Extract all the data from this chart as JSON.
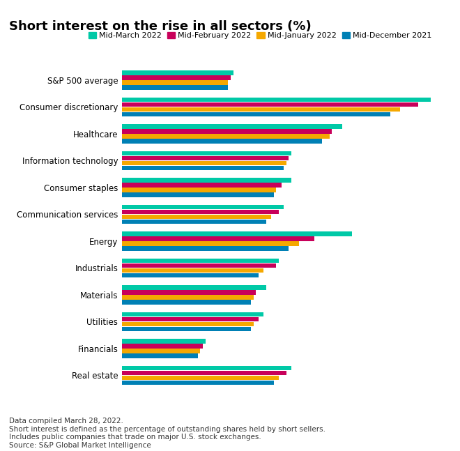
{
  "title": "Short interest on the rise in all sectors (%)",
  "categories": [
    "S&P 500 average",
    "Consumer discretionary",
    "Healthcare",
    "Information technology",
    "Consumer staples",
    "Communication services",
    "Energy",
    "Industrials",
    "Materials",
    "Utilities",
    "Financials",
    "Real estate"
  ],
  "series": {
    "Mid-March 2022": [
      2.2,
      6.1,
      4.35,
      3.35,
      3.35,
      3.2,
      4.55,
      3.1,
      2.85,
      2.8,
      1.65,
      3.35
    ],
    "Mid-February 2022": [
      2.15,
      5.85,
      4.15,
      3.3,
      3.15,
      3.1,
      3.8,
      3.05,
      2.65,
      2.7,
      1.6,
      3.25
    ],
    "Mid-January 2022": [
      2.1,
      5.5,
      4.1,
      3.25,
      3.05,
      2.95,
      3.5,
      2.8,
      2.6,
      2.6,
      1.55,
      3.1
    ],
    "Mid-December 2021": [
      2.09,
      5.3,
      3.95,
      3.2,
      3.0,
      2.85,
      3.3,
      2.7,
      2.55,
      2.55,
      1.5,
      3.0
    ]
  },
  "colors": {
    "Mid-March 2022": "#00C9A7",
    "Mid-February 2022": "#C8005A",
    "Mid-January 2022": "#F5A800",
    "Mid-December 2021": "#0080B5"
  },
  "footnote": "Data compiled March 28, 2022.\nShort interest is defined as the percentage of outstanding shares held by short sellers.\nIncludes public companies that trade on major U.S. stock exchanges.\nSource: S&P Global Market Intelligence",
  "xlim": [
    0,
    6.5
  ],
  "bar_height": 0.17,
  "bar_gap": 0.01,
  "title_fontsize": 13,
  "label_fontsize": 8.5,
  "legend_fontsize": 8.0,
  "footnote_fontsize": 7.5,
  "background_color": "#FFFFFF"
}
